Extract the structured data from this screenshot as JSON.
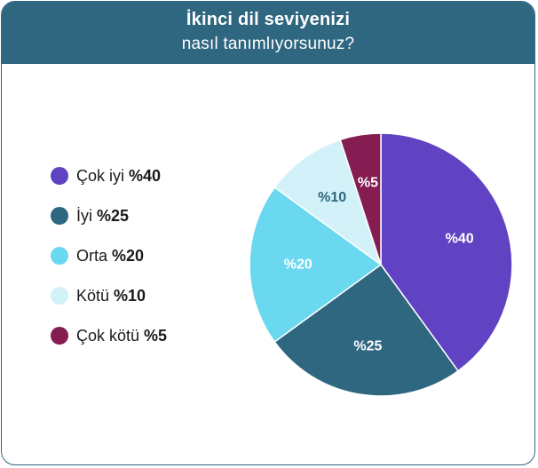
{
  "header": {
    "title": "İkinci dil seviyenizi",
    "subtitle": "nasıl tanımlıyorsunuz?"
  },
  "chart_data": {
    "type": "pie",
    "title": "İkinci dil seviyenizi nasıl tanımlıyorsunuz?",
    "legend_position": "left",
    "slices": [
      {
        "label": "Çok iyi",
        "value": 40,
        "value_text": "%40",
        "color": "#5f43c2",
        "text_color": "#ffffff"
      },
      {
        "label": "İyi",
        "value": 25,
        "value_text": "%25",
        "color": "#2f6680",
        "text_color": "#ffffff"
      },
      {
        "label": "Orta",
        "value": 20,
        "value_text": "%20",
        "color": "#6ad8ef",
        "text_color": "#ffffff"
      },
      {
        "label": "Kötü",
        "value": 10,
        "value_text": "%10",
        "color": "#d2f1f8",
        "text_color": "#2f6680"
      },
      {
        "label": "Çok kötü",
        "value": 5,
        "value_text": "%5",
        "color": "#851c52",
        "text_color": "#ffffff"
      }
    ]
  }
}
